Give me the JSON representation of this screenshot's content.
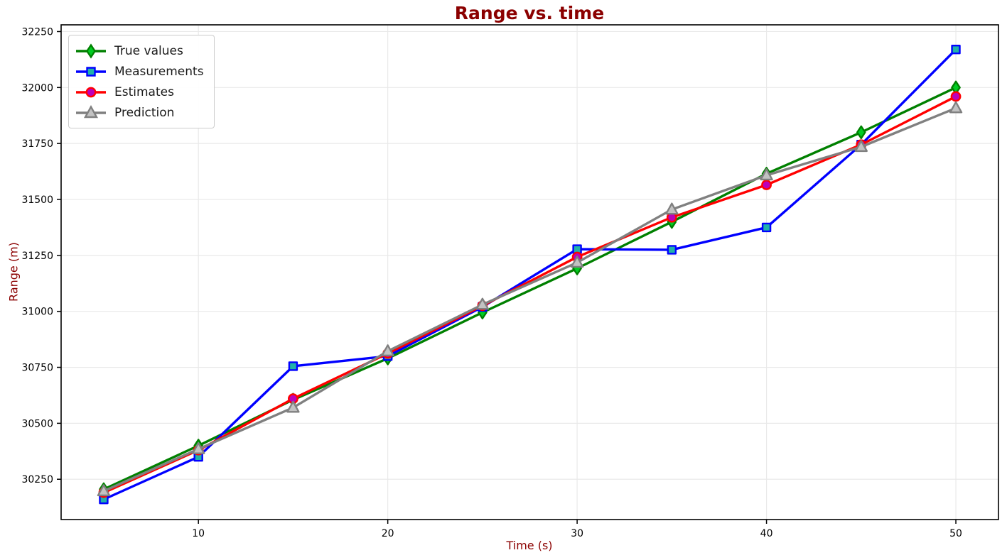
{
  "figure": {
    "background": "#ffffff"
  },
  "styles": {
    "title_color": "#8b0000",
    "axis_label_color": "#8b0000",
    "tick_label_color": "#000000",
    "grid_color": "#e9e9e9",
    "spine_color": "#000000",
    "legend_border_color": "#cccccc",
    "legend_text_color": "#1a1a1a"
  },
  "chart_data": {
    "type": "line",
    "title": "Range vs. time",
    "xlabel": "Time (s)",
    "ylabel": "Range (m)",
    "x": [
      5,
      10,
      15,
      20,
      25,
      30,
      35,
      40,
      45,
      50
    ],
    "x_ticks": [
      10,
      20,
      30,
      40,
      50
    ],
    "y_ticks": [
      30250,
      30500,
      30750,
      31000,
      31250,
      31500,
      31750,
      32000,
      32250
    ],
    "xlim": [
      2.75,
      52.25
    ],
    "ylim": [
      30070,
      32280
    ],
    "grid": true,
    "legend_position": "upper-left",
    "series": [
      {
        "name": "True values",
        "color": "#008000",
        "marker": "diamond",
        "marker_fill": "#00cc22",
        "values": [
          30205,
          30400,
          30605,
          30790,
          30995,
          31192,
          31400,
          31615,
          31800,
          32000
        ]
      },
      {
        "name": "Measurements",
        "color": "#0000ff",
        "marker": "square",
        "marker_fill": "#20b2aa",
        "values": [
          30160,
          30350,
          30755,
          30800,
          31020,
          31278,
          31275,
          31375,
          31745,
          32170
        ]
      },
      {
        "name": "Estimates",
        "color": "#ff0000",
        "marker": "circle",
        "marker_fill": "#bb00bb",
        "values": [
          30190,
          30380,
          30610,
          30812,
          31025,
          31243,
          31420,
          31565,
          31745,
          31960
        ]
      },
      {
        "name": "Prediction",
        "color": "#808080",
        "marker": "triangle",
        "marker_fill": "#c2c2c2",
        "values": [
          30197,
          30385,
          30570,
          30822,
          31030,
          31218,
          31455,
          31608,
          31735,
          31908
        ]
      }
    ]
  }
}
